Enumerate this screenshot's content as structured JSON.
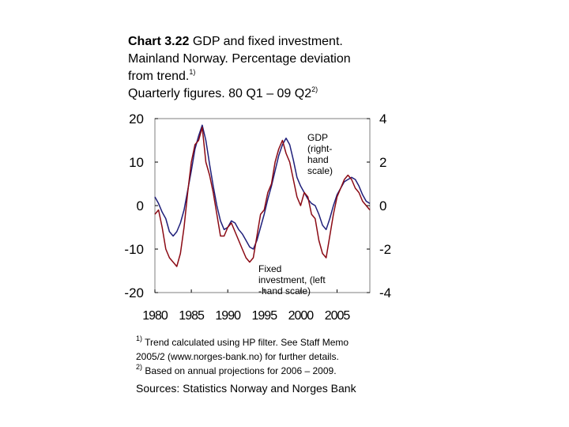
{
  "title": {
    "chart_number": "Chart 3.22",
    "line1_rest": " GDP and fixed investment.",
    "line2": "Mainland Norway. Percentage deviation",
    "line3": "from trend.",
    "line3_sup": "1)",
    "line4": "Quarterly figures. 80 Q1 – 09 Q2",
    "line4_sup": "2)"
  },
  "notes": {
    "note1_marker": "1)",
    "note1_line1": " Trend calculated using HP filter. See Staff Memo",
    "note1_line2": "2005/2 (www.norges-bank.no) for further details.",
    "note2_marker": "2)",
    "note2_text": " Based on annual projections for 2006 – 2009."
  },
  "sources": "Sources: Statistics Norway and Norges Bank",
  "annotations": {
    "gdp": [
      "GDP",
      "(right-",
      "hand",
      "scale)"
    ],
    "investment": [
      "Fixed",
      "investment, (left",
      "-hand scale)"
    ]
  },
  "colors": {
    "gdp": "#1f1f7a",
    "investment": "#8b0a14",
    "axis": "#000000",
    "frame": "#7f7f7f"
  },
  "chart_data": {
    "type": "line",
    "title": "GDP and fixed investment. Mainland Norway. Percentage deviation from trend. Quarterly figures. 80 Q1 – 09 Q2",
    "x_ticks": [
      "1980",
      "1985",
      "1990",
      "1995",
      "2000",
      "2005"
    ],
    "xlim": [
      1980,
      2009.5
    ],
    "y_left": {
      "label": "Fixed investment",
      "lim": [
        -20,
        20
      ],
      "ticks": [
        "20",
        "10",
        "0",
        "-10",
        "-20"
      ]
    },
    "y_right": {
      "label": "GDP",
      "lim": [
        -4,
        4
      ],
      "ticks": [
        "4",
        "2",
        "0",
        "-2",
        "-4"
      ]
    },
    "series": [
      {
        "name": "GDP (right-hand scale)",
        "axis": "right",
        "points": [
          [
            1980.0,
            0.4
          ],
          [
            1980.5,
            0.1
          ],
          [
            1981.0,
            -0.3
          ],
          [
            1981.5,
            -0.6
          ],
          [
            1982.0,
            -1.2
          ],
          [
            1982.5,
            -1.4
          ],
          [
            1983.0,
            -1.2
          ],
          [
            1983.5,
            -0.8
          ],
          [
            1984.0,
            -0.2
          ],
          [
            1984.5,
            0.7
          ],
          [
            1985.0,
            1.6
          ],
          [
            1985.5,
            2.6
          ],
          [
            1986.0,
            3.2
          ],
          [
            1986.5,
            3.7
          ],
          [
            1987.0,
            3.0
          ],
          [
            1987.5,
            1.9
          ],
          [
            1988.0,
            0.9
          ],
          [
            1988.5,
            0.0
          ],
          [
            1989.0,
            -0.7
          ],
          [
            1989.5,
            -1.1
          ],
          [
            1990.0,
            -1.0
          ],
          [
            1990.5,
            -0.7
          ],
          [
            1991.0,
            -0.8
          ],
          [
            1991.5,
            -1.1
          ],
          [
            1992.0,
            -1.3
          ],
          [
            1992.5,
            -1.6
          ],
          [
            1993.0,
            -1.9
          ],
          [
            1993.5,
            -2.0
          ],
          [
            1994.0,
            -1.6
          ],
          [
            1994.5,
            -1.0
          ],
          [
            1995.0,
            -0.4
          ],
          [
            1995.5,
            0.3
          ],
          [
            1996.0,
            0.9
          ],
          [
            1996.5,
            1.6
          ],
          [
            1997.0,
            2.3
          ],
          [
            1997.5,
            2.8
          ],
          [
            1998.0,
            3.1
          ],
          [
            1998.5,
            2.8
          ],
          [
            1999.0,
            2.1
          ],
          [
            1999.5,
            1.3
          ],
          [
            2000.0,
            0.9
          ],
          [
            2000.5,
            0.6
          ],
          [
            2001.0,
            0.3
          ],
          [
            2001.5,
            0.1
          ],
          [
            2002.0,
            0.0
          ],
          [
            2002.5,
            -0.4
          ],
          [
            2003.0,
            -0.9
          ],
          [
            2003.5,
            -1.1
          ],
          [
            2004.0,
            -0.6
          ],
          [
            2004.5,
            0.0
          ],
          [
            2005.0,
            0.5
          ],
          [
            2005.5,
            0.8
          ],
          [
            2006.0,
            1.1
          ],
          [
            2006.5,
            1.2
          ],
          [
            2007.0,
            1.3
          ],
          [
            2007.5,
            1.2
          ],
          [
            2008.0,
            0.9
          ],
          [
            2008.5,
            0.5
          ],
          [
            2009.0,
            0.2
          ],
          [
            2009.5,
            0.1
          ]
        ]
      },
      {
        "name": "Fixed investment (left-hand scale)",
        "axis": "left",
        "points": [
          [
            1980.0,
            -2
          ],
          [
            1980.5,
            -1
          ],
          [
            1981.0,
            -5
          ],
          [
            1981.5,
            -10
          ],
          [
            1982.0,
            -12
          ],
          [
            1982.5,
            -13
          ],
          [
            1983.0,
            -14
          ],
          [
            1983.5,
            -11
          ],
          [
            1984.0,
            -5
          ],
          [
            1984.5,
            3
          ],
          [
            1985.0,
            10
          ],
          [
            1985.5,
            14
          ],
          [
            1986.0,
            15
          ],
          [
            1986.5,
            18
          ],
          [
            1987.0,
            10
          ],
          [
            1987.5,
            7
          ],
          [
            1988.0,
            3
          ],
          [
            1988.5,
            -2
          ],
          [
            1989.0,
            -7
          ],
          [
            1989.5,
            -7
          ],
          [
            1990.0,
            -5
          ],
          [
            1990.5,
            -4
          ],
          [
            1991.0,
            -6
          ],
          [
            1991.5,
            -8
          ],
          [
            1992.0,
            -10
          ],
          [
            1992.5,
            -12
          ],
          [
            1993.0,
            -13
          ],
          [
            1993.5,
            -12
          ],
          [
            1994.0,
            -7
          ],
          [
            1994.5,
            -2
          ],
          [
            1995.0,
            -1
          ],
          [
            1995.5,
            3
          ],
          [
            1996.0,
            5
          ],
          [
            1996.5,
            10
          ],
          [
            1997.0,
            13
          ],
          [
            1997.5,
            15
          ],
          [
            1998.0,
            12
          ],
          [
            1998.5,
            10
          ],
          [
            1999.0,
            6
          ],
          [
            1999.5,
            2
          ],
          [
            2000.0,
            0
          ],
          [
            2000.5,
            3
          ],
          [
            2001.0,
            2
          ],
          [
            2001.5,
            -2
          ],
          [
            2002.0,
            -3
          ],
          [
            2002.5,
            -8
          ],
          [
            2003.0,
            -11
          ],
          [
            2003.5,
            -12
          ],
          [
            2004.0,
            -7
          ],
          [
            2004.5,
            -2
          ],
          [
            2005.0,
            2
          ],
          [
            2005.5,
            4
          ],
          [
            2006.0,
            6
          ],
          [
            2006.5,
            7
          ],
          [
            2007.0,
            6
          ],
          [
            2007.5,
            4
          ],
          [
            2008.0,
            3
          ],
          [
            2008.5,
            1
          ],
          [
            2009.0,
            0
          ],
          [
            2009.5,
            -1
          ]
        ]
      }
    ]
  }
}
